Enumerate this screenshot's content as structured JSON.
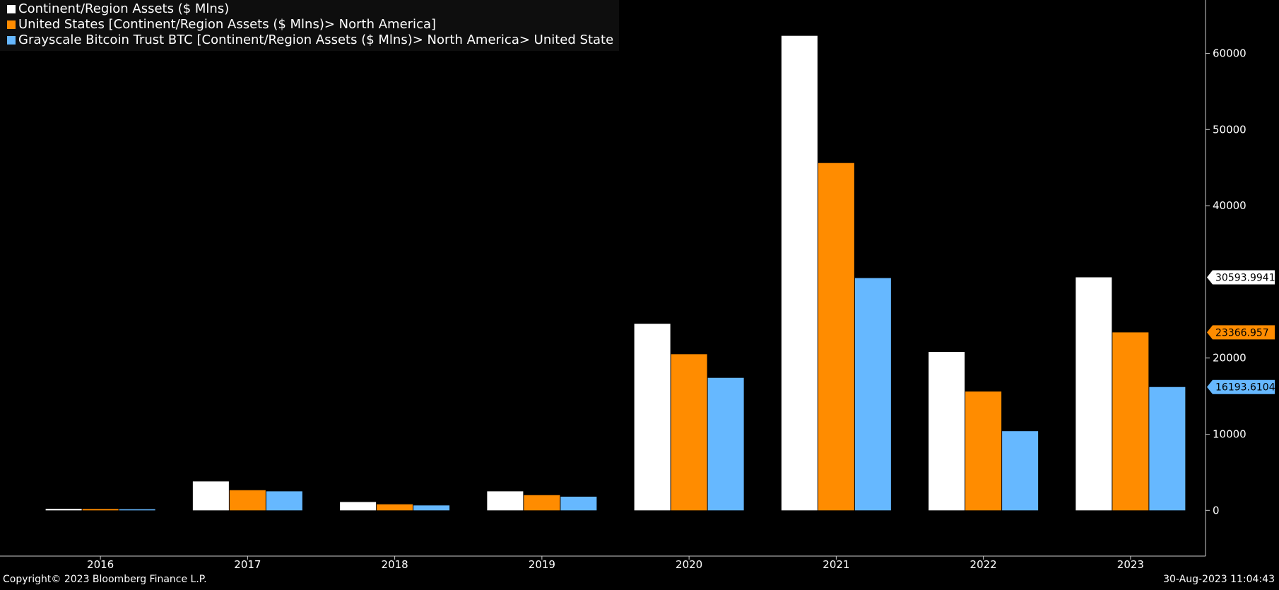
{
  "chart_data": {
    "type": "bar",
    "title": "",
    "xlabel": "",
    "ylabel": "",
    "categories": [
      "2016",
      "2017",
      "2018",
      "2019",
      "2020",
      "2021",
      "2022",
      "2023"
    ],
    "series": [
      {
        "name": "Continent/Region Assets ($ Mlns)",
        "color": "#ffffff",
        "values": [
          200,
          3800,
          1100,
          2500,
          24500,
          62300,
          20800,
          30594
        ]
      },
      {
        "name": "United States [Continent/Region Assets ($ Mlns)> North America]",
        "color": "#ff8c00",
        "values": [
          180,
          2650,
          800,
          2000,
          20500,
          45600,
          15600,
          23367
        ]
      },
      {
        "name": "Grayscale Bitcoin Trust BTC [Continent/Region Assets ($ Mlns)> North America> United State",
        "color": "#66b8ff",
        "values": [
          150,
          2500,
          650,
          1800,
          17400,
          30500,
          10400,
          16194
        ]
      }
    ],
    "ylim": [
      -6000,
      67000
    ],
    "yticks": [
      "0",
      "10000",
      "20000",
      "40000",
      "50000",
      "60000"
    ],
    "ytick_values": [
      0,
      10000,
      20000,
      40000,
      50000,
      60000
    ],
    "last_value_labels": [
      {
        "text": "30593.9941",
        "value": 30593.9941,
        "bg": "#ffffff",
        "fg": "#000000"
      },
      {
        "text": "23366.957",
        "value": 23366.957,
        "bg": "#ff8c00",
        "fg": "#000000"
      },
      {
        "text": "16193.6104",
        "value": 16193.6104,
        "bg": "#66b8ff",
        "fg": "#000000"
      }
    ]
  },
  "footer": {
    "copyright": "Copyright© 2023 Bloomberg Finance L.P.",
    "timestamp": "30-Aug-2023 11:04:43"
  }
}
